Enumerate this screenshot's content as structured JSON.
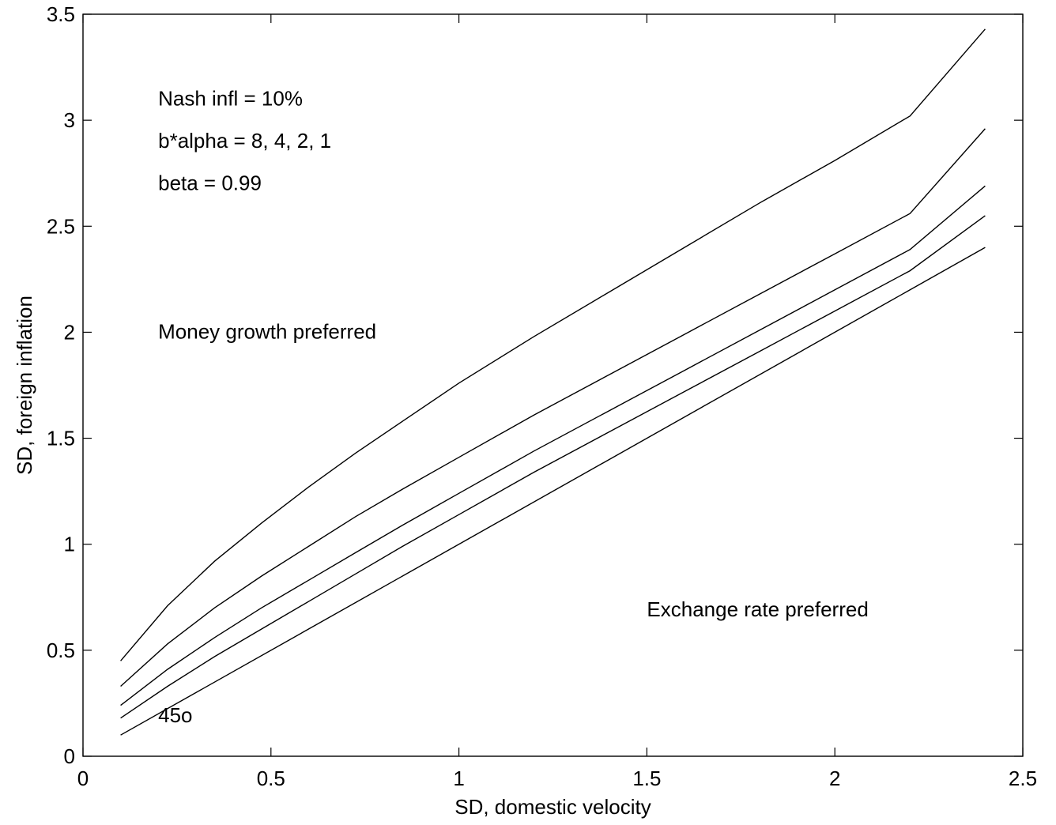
{
  "chart_data": {
    "type": "line",
    "xlabel": "SD, domestic velocity",
    "ylabel": "SD, foreign inflation",
    "xlim": [
      0,
      2.5
    ],
    "ylim": [
      0,
      3.5
    ],
    "xticks": [
      0,
      0.5,
      1,
      1.5,
      2,
      2.5
    ],
    "xtick_labels": [
      "0",
      "0.5",
      "1",
      "1.5",
      "2",
      "2.5"
    ],
    "yticks": [
      0,
      0.5,
      1,
      1.5,
      2,
      2.5,
      3,
      3.5
    ],
    "ytick_labels": [
      "0",
      "0.5",
      "1",
      "1.5",
      "2",
      "2.5",
      "3",
      "3.5"
    ],
    "grid": false,
    "series": [
      {
        "x": [
          0.1,
          0.225,
          0.35,
          0.475,
          0.6,
          0.725,
          0.85,
          1.0,
          1.2,
          1.4,
          1.6,
          1.8,
          2.0,
          2.2,
          2.4
        ],
        "y": [
          0.45,
          0.71,
          0.92,
          1.1,
          1.27,
          1.43,
          1.58,
          1.76,
          1.98,
          2.19,
          2.4,
          2.61,
          2.81,
          3.02,
          3.43
        ]
      },
      {
        "x": [
          0.1,
          0.225,
          0.35,
          0.475,
          0.6,
          0.725,
          0.85,
          1.0,
          1.2,
          1.4,
          1.6,
          1.8,
          2.0,
          2.2,
          2.4
        ],
        "y": [
          0.33,
          0.53,
          0.7,
          0.85,
          0.99,
          1.13,
          1.26,
          1.41,
          1.61,
          1.8,
          1.99,
          2.18,
          2.37,
          2.56,
          2.96
        ]
      },
      {
        "x": [
          0.1,
          0.225,
          0.35,
          0.475,
          0.6,
          0.725,
          0.85,
          1.0,
          1.2,
          1.4,
          1.6,
          1.8,
          2.0,
          2.2,
          2.4
        ],
        "y": [
          0.24,
          0.41,
          0.56,
          0.7,
          0.83,
          0.96,
          1.09,
          1.24,
          1.44,
          1.63,
          1.82,
          2.01,
          2.2,
          2.39,
          2.69
        ]
      },
      {
        "x": [
          0.1,
          0.225,
          0.35,
          0.475,
          0.6,
          0.725,
          0.85,
          1.0,
          1.2,
          1.4,
          1.6,
          1.8,
          2.0,
          2.2,
          2.4
        ],
        "y": [
          0.18,
          0.33,
          0.47,
          0.6,
          0.73,
          0.86,
          0.99,
          1.14,
          1.34,
          1.53,
          1.72,
          1.91,
          2.1,
          2.29,
          2.55
        ]
      },
      {
        "x": [
          0.1,
          2.4
        ],
        "y": [
          0.1,
          2.4
        ]
      }
    ],
    "annotations": [
      {
        "text": "Nash infl = 10%",
        "x": 0.2,
        "y": 3.07
      },
      {
        "text": "b*alpha = 8, 4, 2, 1",
        "x": 0.2,
        "y": 2.87
      },
      {
        "text": "beta = 0.99",
        "x": 0.2,
        "y": 2.67
      },
      {
        "text": "Money growth preferred",
        "x": 0.2,
        "y": 1.97
      },
      {
        "text": "Exchange rate preferred",
        "x": 1.5,
        "y": 0.66
      },
      {
        "text": "45o",
        "x": 0.2,
        "y": 0.16
      }
    ]
  }
}
